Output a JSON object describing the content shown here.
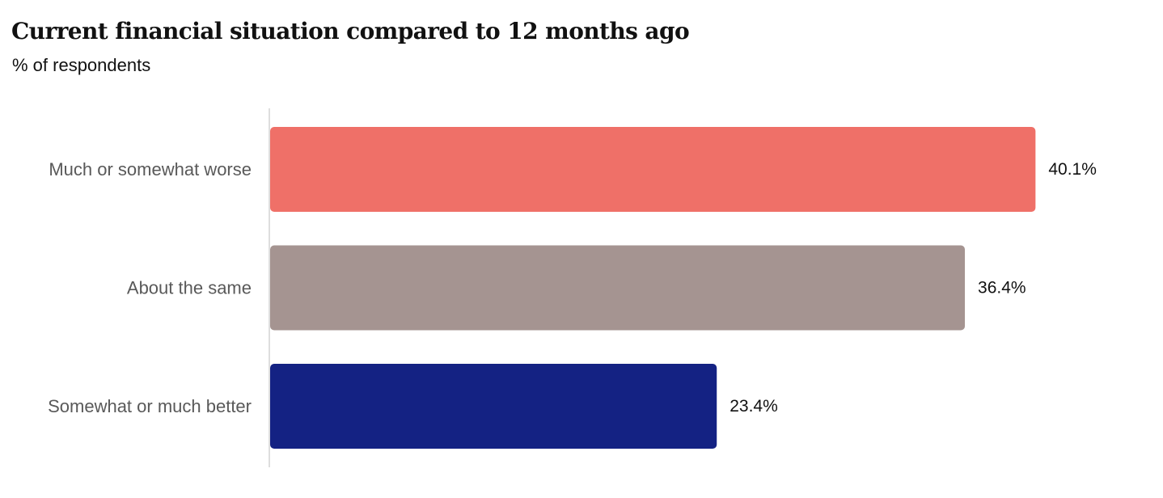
{
  "chart_data": {
    "type": "bar",
    "orientation": "horizontal",
    "title": "Current financial situation compared to 12 months ago",
    "subtitle": "% of respondents",
    "categories": [
      "Much or somewhat worse",
      "About the same",
      "Somewhat or much better"
    ],
    "values": [
      40.1,
      36.4,
      23.4
    ],
    "value_labels": [
      "40.1%",
      "36.4%",
      "23.4%"
    ],
    "colors": [
      "#ef7068",
      "#a59491",
      "#142283"
    ],
    "xlim": [
      0,
      45
    ],
    "xlabel": "",
    "ylabel": "",
    "grid": false,
    "legend": "none"
  }
}
